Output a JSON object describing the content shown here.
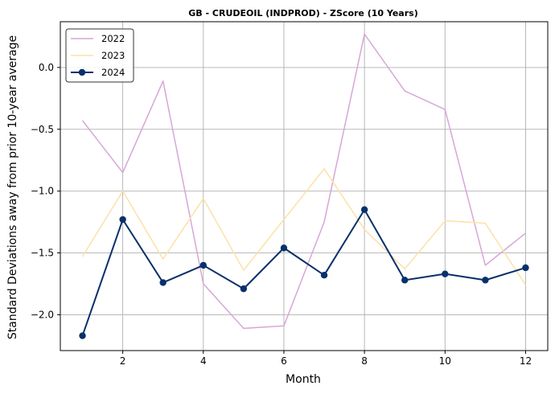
{
  "chart_data": {
    "type": "line",
    "title": "GB - CRUDEOIL (INDPROD) - ZScore (10 Years)",
    "xlabel": "Month",
    "ylabel": "Standard Deviations away from prior 10-year average",
    "x": [
      1,
      2,
      3,
      4,
      5,
      6,
      7,
      8,
      9,
      10,
      11,
      12
    ],
    "xlim": [
      0.45,
      12.55
    ],
    "ylim": [
      -2.29,
      0.37
    ],
    "xticks": [
      2,
      4,
      6,
      8,
      10,
      12
    ],
    "yticks": [
      0.0,
      -0.5,
      -1.0,
      -1.5,
      -2.0
    ],
    "xtick_labels": [
      "2",
      "4",
      "6",
      "8",
      "10",
      "12"
    ],
    "ytick_labels": [
      "0.0",
      "−0.5",
      "−1.0",
      "−1.5",
      "−2.0"
    ],
    "grid": true,
    "legend_position": "top-left",
    "series": [
      {
        "name": "2022",
        "color": "#d7a6d7",
        "markers": false,
        "values": [
          -0.43,
          -0.85,
          -0.11,
          -1.75,
          -2.11,
          -2.09,
          -1.25,
          0.27,
          -0.19,
          -0.34,
          -1.6,
          -1.34
        ]
      },
      {
        "name": "2023",
        "color": "#fde0a8",
        "markers": false,
        "values": [
          -1.53,
          -1.0,
          -1.55,
          -1.06,
          -1.64,
          -1.23,
          -0.82,
          -1.31,
          -1.63,
          -1.24,
          -1.26,
          -1.76
        ]
      },
      {
        "name": "2024",
        "color": "#08306b",
        "markers": true,
        "values": [
          -2.17,
          -1.23,
          -1.74,
          -1.6,
          -1.79,
          -1.46,
          -1.68,
          -1.15,
          -1.72,
          -1.67,
          -1.72,
          -1.62
        ]
      }
    ]
  }
}
